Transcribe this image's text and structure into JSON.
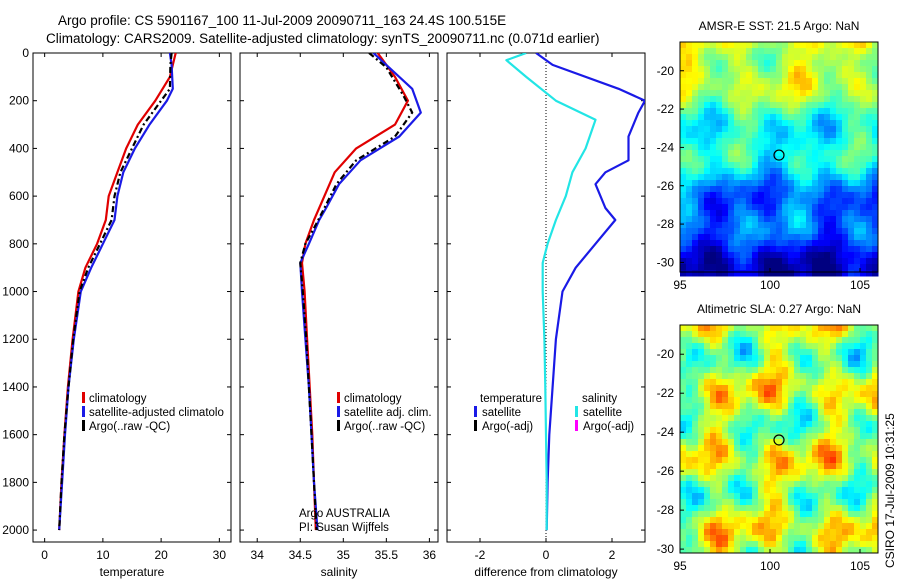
{
  "header": {
    "line1": "Argo profile: CS 5901167_100 11-Jul-2009 20090711_163 24.4S 100.515E",
    "line2": "Climatology: CARS2009. Satellite-adjusted climatology: synTS_20090711.nc (0.071d earlier)"
  },
  "side_label": "CSIRO 17-Jul-2009 10:31:25",
  "colors": {
    "climatology": "#e00000",
    "satellite": "#1a1ae6",
    "argo": "#000000",
    "salinity_satellite": "#22e5e5",
    "salinity_argo": "#ff00ff"
  },
  "chart_data": [
    {
      "type": "line",
      "id": "temperature",
      "xlabel": "temperature",
      "ylabel": "",
      "xlim": [
        -2,
        32
      ],
      "ylim": [
        2050,
        0
      ],
      "xticks": [
        "0",
        "10",
        "20",
        "30"
      ],
      "yticks": [
        "0",
        "200",
        "400",
        "600",
        "800",
        "1000",
        "1200",
        "1400",
        "1600",
        "1800",
        "2000"
      ],
      "legend": [
        "climatology",
        "satellite-adjusted climatolo",
        "Argo(..raw -QC)"
      ],
      "series": [
        {
          "name": "climatology",
          "color": "#e00000",
          "dash": "",
          "points": [
            [
              22.5,
              0
            ],
            [
              22,
              50
            ],
            [
              21.5,
              100
            ],
            [
              19,
              200
            ],
            [
              16,
              300
            ],
            [
              14,
              400
            ],
            [
              12.5,
              500
            ],
            [
              11,
              600
            ],
            [
              10.5,
              700
            ],
            [
              9,
              800
            ],
            [
              7,
              900
            ],
            [
              5.8,
              1000
            ],
            [
              4.8,
              1200
            ],
            [
              4,
              1400
            ],
            [
              3.4,
              1600
            ],
            [
              2.9,
              1800
            ],
            [
              2.5,
              2000
            ]
          ]
        },
        {
          "name": "satellite-adjusted climatolo",
          "color": "#1a1ae6",
          "dash": "",
          "points": [
            [
              21.5,
              0
            ],
            [
              21.8,
              50
            ],
            [
              22,
              150
            ],
            [
              21,
              200
            ],
            [
              18,
              300
            ],
            [
              15.5,
              400
            ],
            [
              13.5,
              500
            ],
            [
              12.5,
              600
            ],
            [
              12,
              700
            ],
            [
              10,
              800
            ],
            [
              8,
              900
            ],
            [
              6.2,
              1000
            ],
            [
              5,
              1200
            ],
            [
              4.1,
              1400
            ],
            [
              3.5,
              1600
            ],
            [
              3,
              1800
            ],
            [
              2.5,
              2000
            ]
          ]
        },
        {
          "name": "Argo(..raw -QC)",
          "color": "#000000",
          "dash": "6,3,2,3",
          "points": [
            [
              21.8,
              0
            ],
            [
              21.6,
              50
            ],
            [
              21.5,
              150
            ],
            [
              20,
              200
            ],
            [
              17,
              300
            ],
            [
              15,
              400
            ],
            [
              13,
              500
            ],
            [
              12,
              600
            ],
            [
              11.5,
              700
            ],
            [
              9.5,
              800
            ],
            [
              7.5,
              900
            ],
            [
              6,
              1000
            ],
            [
              4.9,
              1200
            ],
            [
              4.1,
              1400
            ],
            [
              3.4,
              1600
            ],
            [
              2.9,
              1800
            ],
            [
              2.5,
              2000
            ]
          ]
        }
      ]
    },
    {
      "type": "line",
      "id": "salinity",
      "xlabel": "salinity",
      "ylabel": "",
      "xlim": [
        33.8,
        36.1
      ],
      "ylim": [
        2050,
        0
      ],
      "xticks": [
        "34",
        "34.5",
        "35",
        "35.5",
        "36"
      ],
      "legend": [
        "climatology",
        "satellite adj. clim.",
        "Argo(..raw -QC)"
      ],
      "annotations": [
        "Argo AUSTRALIA",
        "PI: Susan Wijffels"
      ],
      "series": [
        {
          "name": "climatology",
          "color": "#e00000",
          "dash": "",
          "points": [
            [
              35.4,
              0
            ],
            [
              35.6,
              100
            ],
            [
              35.75,
              200
            ],
            [
              35.6,
              300
            ],
            [
              35.15,
              400
            ],
            [
              34.9,
              500
            ],
            [
              34.78,
              600
            ],
            [
              34.66,
              700
            ],
            [
              34.56,
              800
            ],
            [
              34.52,
              880
            ],
            [
              34.55,
              1000
            ],
            [
              34.58,
              1200
            ],
            [
              34.61,
              1400
            ],
            [
              34.64,
              1600
            ],
            [
              34.66,
              1800
            ],
            [
              34.68,
              2000
            ]
          ]
        },
        {
          "name": "satellite adj. clim.",
          "color": "#1a1ae6",
          "dash": "",
          "points": [
            [
              35.35,
              0
            ],
            [
              35.5,
              50
            ],
            [
              35.8,
              150
            ],
            [
              35.9,
              250
            ],
            [
              35.65,
              350
            ],
            [
              35.2,
              450
            ],
            [
              34.95,
              550
            ],
            [
              34.8,
              650
            ],
            [
              34.72,
              700
            ],
            [
              34.6,
              800
            ],
            [
              34.5,
              880
            ],
            [
              34.52,
              1000
            ],
            [
              34.56,
              1200
            ],
            [
              34.6,
              1400
            ],
            [
              34.63,
              1600
            ],
            [
              34.66,
              1800
            ],
            [
              34.7,
              2000
            ]
          ]
        },
        {
          "name": "Argo(..raw -QC)",
          "color": "#000000",
          "dash": "6,3,2,3",
          "points": [
            [
              35.3,
              0
            ],
            [
              35.5,
              60
            ],
            [
              35.7,
              180
            ],
            [
              35.8,
              250
            ],
            [
              35.6,
              350
            ],
            [
              35.15,
              450
            ],
            [
              34.92,
              550
            ],
            [
              34.78,
              650
            ],
            [
              34.68,
              720
            ],
            [
              34.56,
              800
            ],
            [
              34.5,
              880
            ],
            [
              34.53,
              1000
            ],
            [
              34.57,
              1200
            ],
            [
              34.6,
              1400
            ],
            [
              34.63,
              1600
            ],
            [
              34.66,
              1800
            ],
            [
              34.69,
              2000
            ]
          ]
        }
      ]
    },
    {
      "type": "line",
      "id": "difference",
      "xlabel": "difference from climatology",
      "ylabel": "",
      "xlim": [
        -3,
        3
      ],
      "ylim": [
        2050,
        0
      ],
      "xticks": [
        "-2",
        "0",
        "2"
      ],
      "legend_titles": [
        "temperature",
        "salinity"
      ],
      "legend": [
        "satellite",
        "Argo(-adj)",
        "satellite",
        "Argo(-adj)"
      ],
      "legend_colors": [
        "#1a1ae6",
        "#000000",
        "#22e5e5",
        "#ff00ff"
      ],
      "series": [
        {
          "name": "satellite",
          "quantity": "temperature",
          "color": "#1a1ae6",
          "dash": "",
          "points": [
            [
              -0.3,
              0
            ],
            [
              0.2,
              50
            ],
            [
              2.2,
              150
            ],
            [
              3,
              200
            ],
            [
              2.8,
              250
            ],
            [
              2.5,
              350
            ],
            [
              2.5,
              450
            ],
            [
              1.8,
              500
            ],
            [
              1.5,
              550
            ],
            [
              1.8,
              650
            ],
            [
              2.1,
              700
            ],
            [
              1.5,
              800
            ],
            [
              0.9,
              900
            ],
            [
              0.5,
              1000
            ],
            [
              0.3,
              1200
            ],
            [
              0.2,
              1400
            ],
            [
              0.1,
              1600
            ],
            [
              0.05,
              1800
            ],
            [
              0.02,
              2000
            ]
          ]
        },
        {
          "name": "satellite",
          "quantity": "salinity",
          "color": "#22e5e5",
          "dash": "",
          "points": [
            [
              -0.6,
              0
            ],
            [
              -1.2,
              30
            ],
            [
              -0.6,
              100
            ],
            [
              0.3,
              200
            ],
            [
              1.5,
              280
            ],
            [
              1.2,
              400
            ],
            [
              0.8,
              500
            ],
            [
              0.6,
              600
            ],
            [
              0.3,
              700
            ],
            [
              0.05,
              800
            ],
            [
              -0.1,
              880
            ],
            [
              -0.1,
              1000
            ],
            [
              -0.05,
              1200
            ],
            [
              -0.02,
              1400
            ],
            [
              0,
              1600
            ],
            [
              0.02,
              1800
            ],
            [
              0.02,
              2000
            ]
          ]
        }
      ]
    },
    {
      "type": "heatmap",
      "id": "sst",
      "title": "AMSR-E SST: 21.5 Argo: NaN",
      "xlim": [
        95,
        106
      ],
      "ylim": [
        -30.5,
        -18.5
      ],
      "xticks": [
        "95",
        "100",
        "105"
      ],
      "yticks": [
        "-20",
        "-22",
        "-24",
        "-26",
        "-28",
        "-30"
      ],
      "marker": [
        100.5,
        -24.4
      ]
    },
    {
      "type": "heatmap",
      "id": "sla",
      "title": "Altimetric SLA: 0.27 Argo: NaN",
      "xlim": [
        95,
        106
      ],
      "ylim": [
        -30.2,
        -18.5
      ],
      "xticks": [
        "95",
        "100",
        "105"
      ],
      "yticks": [
        "-20",
        "-22",
        "-24",
        "-26",
        "-28",
        "-30"
      ],
      "marker": [
        100.5,
        -24.4
      ]
    }
  ]
}
